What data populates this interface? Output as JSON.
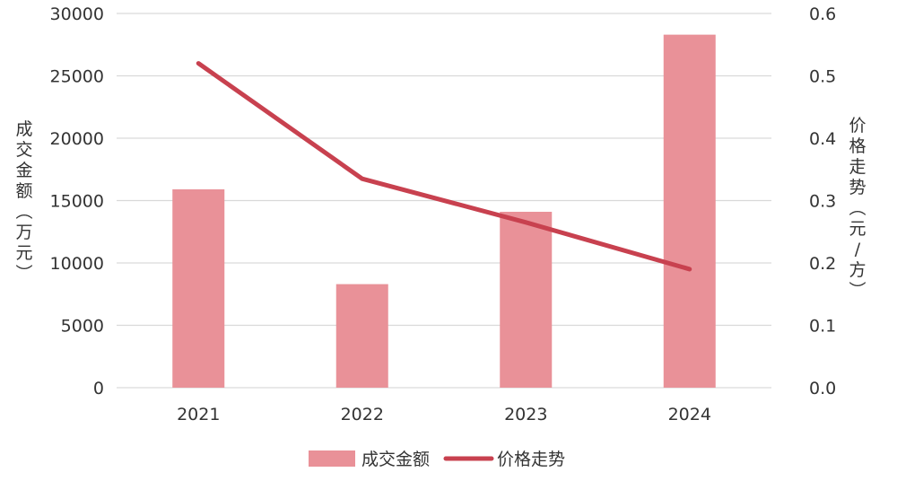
{
  "chart_data": {
    "type": "bar",
    "categories": [
      "2021",
      "2022",
      "2023",
      "2024"
    ],
    "series": [
      {
        "name": "成交金额",
        "type": "bar",
        "axis": "left",
        "values": [
          15900,
          8300,
          14100,
          28300
        ]
      },
      {
        "name": "价格走势",
        "type": "line",
        "axis": "right",
        "values": [
          0.52,
          0.335,
          0.265,
          0.19
        ]
      }
    ],
    "ylabel": "成交金额（万元）",
    "y2label": "价格走势（元/方）",
    "ylim": [
      0,
      30000
    ],
    "y2lim": [
      0,
      0.6
    ],
    "yticks": [
      "0",
      "5000",
      "10000",
      "15000",
      "20000",
      "25000",
      "30000"
    ],
    "y2ticks": [
      "0.0",
      "0.1",
      "0.2",
      "0.3",
      "0.4",
      "0.5",
      "0.6"
    ],
    "grid": true,
    "legend": "bottom",
    "colors": {
      "bar": "#e99198",
      "line": "#c8414f",
      "grid": "#d9d9d9"
    }
  }
}
